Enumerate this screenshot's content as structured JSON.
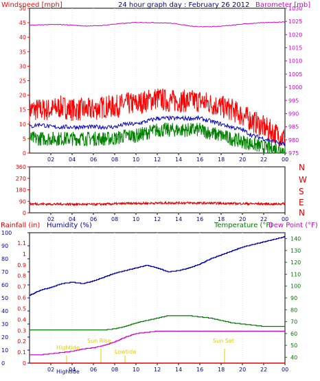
{
  "panel1": {
    "left_label": "Windspeed [mph]",
    "title": "24 hour graph day : February 26 2012",
    "right_label": "Barometer [mb]",
    "left_ticks": [
      "0",
      "5",
      "10",
      "15",
      "20",
      "25",
      "30",
      "35",
      "40",
      "45",
      "50"
    ],
    "right_ticks": [
      "975",
      "980",
      "985",
      "990",
      "995",
      "1000",
      "1005",
      "1010",
      "1015",
      "1020",
      "1025",
      "1030"
    ],
    "x_ticks": [
      "02",
      "04",
      "06",
      "08",
      "10",
      "12",
      "14",
      "16",
      "18",
      "20",
      "22",
      "00"
    ]
  },
  "panel2": {
    "left_ticks": [
      "0",
      "90",
      "180",
      "270",
      "360"
    ],
    "compass": [
      "N",
      "W",
      "S",
      "E",
      "N"
    ],
    "x_ticks": [
      "02",
      "04",
      "06",
      "08",
      "10",
      "12",
      "14",
      "16",
      "18",
      "20",
      "22",
      "00"
    ]
  },
  "panel3": {
    "rain_label": "Rainfall (in)",
    "humidity_label": "Humidity (%)",
    "temp_label": "Temperature (°F)",
    "dew_label": "Dew Point (°F)",
    "humidity_ticks": [
      "0",
      "10",
      "20",
      "30",
      "40",
      "50",
      "60",
      "70",
      "80",
      "90",
      "100"
    ],
    "rain_ticks": [
      "0",
      "0.1",
      "0.2",
      "0.3",
      "0.4",
      "0.5",
      "0.6",
      "0.7",
      "0.8",
      "0.9",
      "1",
      "1.1"
    ],
    "temp_ticks": [
      "40",
      "50",
      "60",
      "70",
      "80",
      "90",
      "100",
      "110",
      "120",
      "130",
      "140"
    ],
    "x_ticks": [
      "02",
      "04",
      "06",
      "08",
      "10",
      "12",
      "14",
      "16",
      "18",
      "20",
      "22",
      "00"
    ],
    "annotations": {
      "hightide": "Hightide",
      "sunrise": "Sun Rise",
      "lowtide": "Lowtide",
      "sunset": "Sun Set"
    }
  },
  "colors": {
    "wind_max": "#ff0000",
    "wind_avg": "#0000c0",
    "wind_min": "#008000",
    "barometer": "#cc00cc",
    "direction": "#dd0000",
    "humidity": "#0000aa",
    "temperature": "#007700",
    "dewpoint": "#cc00cc",
    "rain": "#dd0000",
    "annotation": "#ddcc00",
    "frame": "#000000"
  },
  "chart_data": [
    {
      "type": "line",
      "title": "24 hour graph day : February 26 2012",
      "ylabel": "Windspeed [mph]",
      "y2label": "Barometer [mb]",
      "xlim": [
        0,
        24
      ],
      "ylim": [
        0,
        50
      ],
      "y2lim": [
        975,
        1030
      ],
      "x": [
        0,
        1,
        2,
        3,
        4,
        5,
        6,
        7,
        8,
        9,
        10,
        11,
        12,
        13,
        14,
        15,
        16,
        17,
        18,
        19,
        20,
        21,
        22,
        23,
        24
      ],
      "series": [
        {
          "axis": "left",
          "values": [
            15,
            15,
            15,
            16,
            15,
            15,
            15,
            16,
            16,
            17,
            17,
            18,
            19,
            18,
            18,
            18,
            18,
            17,
            16,
            15,
            13,
            11,
            9,
            7,
            5
          ]
        },
        {
          "axis": "left",
          "values": [
            9,
            10,
            9,
            9,
            9,
            9,
            9,
            9,
            9,
            10,
            10,
            11,
            12,
            12,
            12,
            12,
            12,
            11,
            10,
            9,
            8,
            6,
            5,
            4,
            3
          ]
        },
        {
          "axis": "left",
          "values": [
            5,
            5,
            5,
            5,
            5,
            5,
            5,
            5,
            5,
            6,
            6,
            7,
            8,
            8,
            8,
            8,
            8,
            7,
            6,
            5,
            4,
            3,
            2,
            1.5,
            1
          ]
        },
        {
          "axis": "right",
          "values": [
            1023.5,
            1023.7,
            1023.8,
            1023.8,
            1023.6,
            1023.3,
            1023.3,
            1023.5,
            1024,
            1024.3,
            1024.6,
            1024.6,
            1024.5,
            1024.4,
            1024,
            1023.3,
            1023,
            1023,
            1023.2,
            1023.5,
            1024,
            1024.3,
            1024.5,
            1024.7,
            1024.8
          ]
        }
      ]
    },
    {
      "type": "line",
      "xlim": [
        0,
        24
      ],
      "ylim": [
        0,
        360
      ],
      "x": [
        0,
        2,
        4,
        6,
        8,
        10,
        12,
        14,
        16,
        18,
        20,
        22,
        23,
        24
      ],
      "series": [
        {
          "values": [
            70,
            68,
            68,
            66,
            70,
            74,
            76,
            78,
            76,
            74,
            72,
            70,
            68,
            72
          ]
        }
      ]
    },
    {
      "type": "line",
      "ylabel": "Humidity (%)",
      "y2label": "Temperature (°F)",
      "xlim": [
        0,
        24
      ],
      "ylim": [
        0,
        100
      ],
      "y2lim": [
        35,
        145
      ],
      "x": [
        0,
        1,
        2,
        3,
        4,
        5,
        6,
        7,
        8,
        9,
        10,
        11,
        12,
        13,
        14,
        15,
        16,
        17,
        18,
        19,
        20,
        21,
        22,
        23,
        24
      ],
      "series": [
        {
          "axis": "left",
          "values": [
            52,
            56,
            58,
            61,
            62,
            61,
            63,
            66,
            69,
            71,
            73,
            75,
            73,
            70,
            71,
            73,
            76,
            80,
            83,
            86,
            89,
            91,
            93,
            95,
            97
          ]
        },
        {
          "axis": "right",
          "values": [
            63,
            63,
            63,
            63,
            63,
            63,
            63,
            63,
            64,
            66,
            69,
            71,
            73,
            75,
            75,
            75,
            74,
            73,
            71,
            69,
            68,
            67,
            66,
            66,
            66
          ]
        },
        {
          "axis": "right",
          "values": [
            42,
            42,
            43,
            44,
            45,
            47,
            48,
            50,
            53,
            57,
            60,
            61,
            62,
            62,
            62,
            62,
            62,
            62,
            62,
            62,
            62,
            62,
            62,
            62,
            62
          ]
        },
        {
          "values": [
            0,
            0,
            0,
            0,
            0,
            0,
            0,
            0,
            0,
            0,
            0,
            0,
            0,
            0,
            0,
            0,
            0,
            0,
            0,
            0,
            0,
            0,
            0,
            0,
            0
          ]
        }
      ]
    }
  ]
}
